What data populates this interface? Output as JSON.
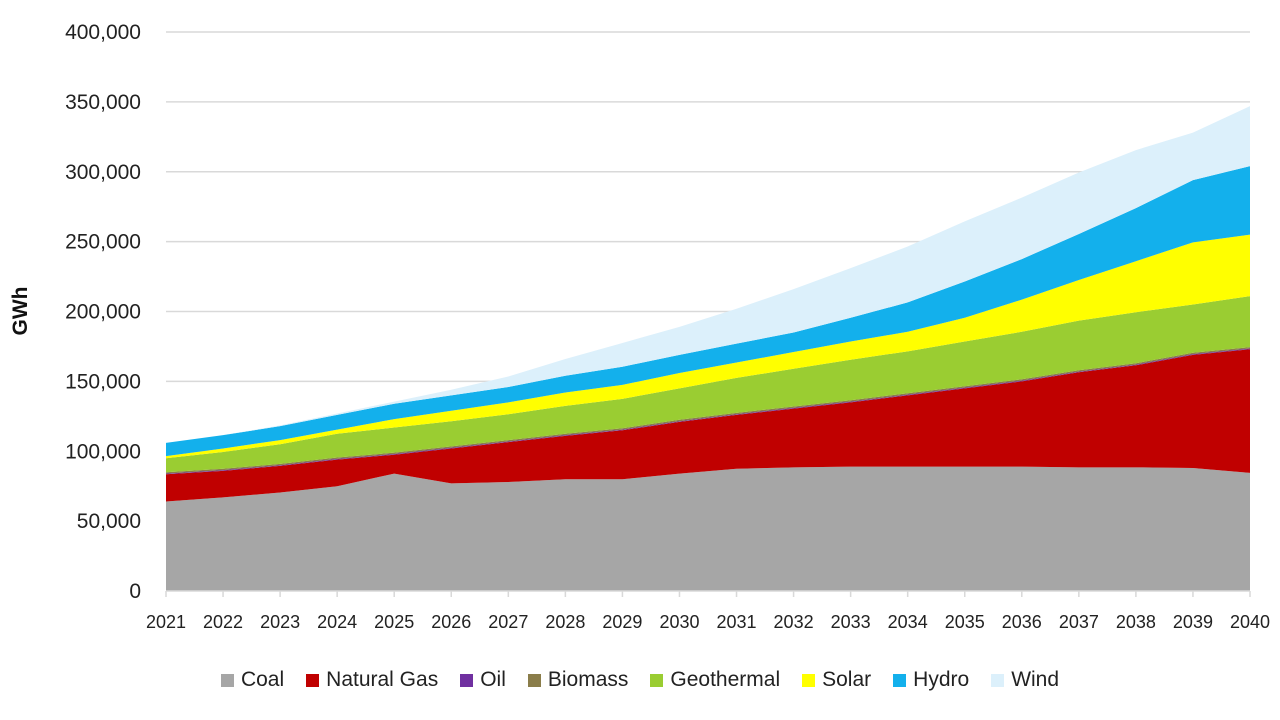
{
  "chart_data": {
    "type": "area",
    "stacked": true,
    "title": "",
    "xlabel": "",
    "ylabel": "GWh",
    "ylim": [
      0,
      400000
    ],
    "yticks": [
      0,
      50000,
      100000,
      150000,
      200000,
      250000,
      300000,
      350000,
      400000
    ],
    "ytick_labels": [
      "0",
      "50,000",
      "100,000",
      "150,000",
      "200,000",
      "250,000",
      "300,000",
      "350,000",
      "400,000"
    ],
    "grid": true,
    "legend_position": "bottom",
    "categories": [
      "2021",
      "2022",
      "2023",
      "2024",
      "2025",
      "2026",
      "2027",
      "2028",
      "2029",
      "2030",
      "2031",
      "2032",
      "2033",
      "2034",
      "2035",
      "2036",
      "2037",
      "2038",
      "2039",
      "2040"
    ],
    "series": [
      {
        "name": "Coal",
        "color": "#a6a6a6",
        "values": [
          64000,
          67000,
          70500,
          75000,
          84000,
          77000,
          78000,
          80000,
          80000,
          84000,
          87500,
          88500,
          89000,
          89000,
          89000,
          89000,
          88500,
          88500,
          88000,
          84500
        ]
      },
      {
        "name": "Natural Gas",
        "color": "#c00000",
        "values": [
          19500,
          19000,
          19000,
          19000,
          13500,
          25000,
          28500,
          31000,
          35000,
          37000,
          38500,
          42000,
          46000,
          51000,
          56000,
          61000,
          68000,
          73000,
          81000,
          88500
        ]
      },
      {
        "name": "Oil",
        "color": "#7030a0",
        "values": [
          500,
          500,
          500,
          500,
          500,
          500,
          500,
          500,
          500,
          500,
          500,
          500,
          500,
          500,
          500,
          500,
          500,
          500,
          500,
          500
        ]
      },
      {
        "name": "Biomass",
        "color": "#8a7d4a",
        "values": [
          1000,
          1000,
          1000,
          1000,
          1000,
          1000,
          1000,
          1000,
          1000,
          1000,
          1000,
          1000,
          1000,
          1000,
          1000,
          1000,
          1000,
          1000,
          1000,
          1000
        ]
      },
      {
        "name": "Geothermal",
        "color": "#9acd32",
        "values": [
          10000,
          12000,
          14000,
          17000,
          18000,
          18000,
          18500,
          20000,
          21000,
          22500,
          25000,
          27000,
          29000,
          30000,
          32000,
          34000,
          35500,
          36500,
          34500,
          36500
        ]
      },
      {
        "name": "Solar",
        "color": "#ffff00",
        "values": [
          1500,
          2500,
          3000,
          3000,
          6000,
          7500,
          8500,
          9500,
          10000,
          11000,
          11000,
          12000,
          13000,
          14000,
          17000,
          23000,
          29000,
          36500,
          44500,
          44000
        ]
      },
      {
        "name": "Hydro",
        "color": "#13b0ec",
        "values": [
          9500,
          9500,
          10000,
          10500,
          11000,
          11000,
          11000,
          12000,
          13000,
          13000,
          13500,
          14000,
          17000,
          21000,
          26000,
          29000,
          33000,
          38000,
          44500,
          49000
        ]
      },
      {
        "name": "Wind",
        "color": "#dcf0fb",
        "values": [
          0,
          0,
          500,
          1000,
          1500,
          4000,
          7500,
          12000,
          17000,
          20000,
          25000,
          31000,
          35500,
          40000,
          43000,
          44000,
          44000,
          41500,
          34000,
          43000
        ]
      }
    ]
  }
}
